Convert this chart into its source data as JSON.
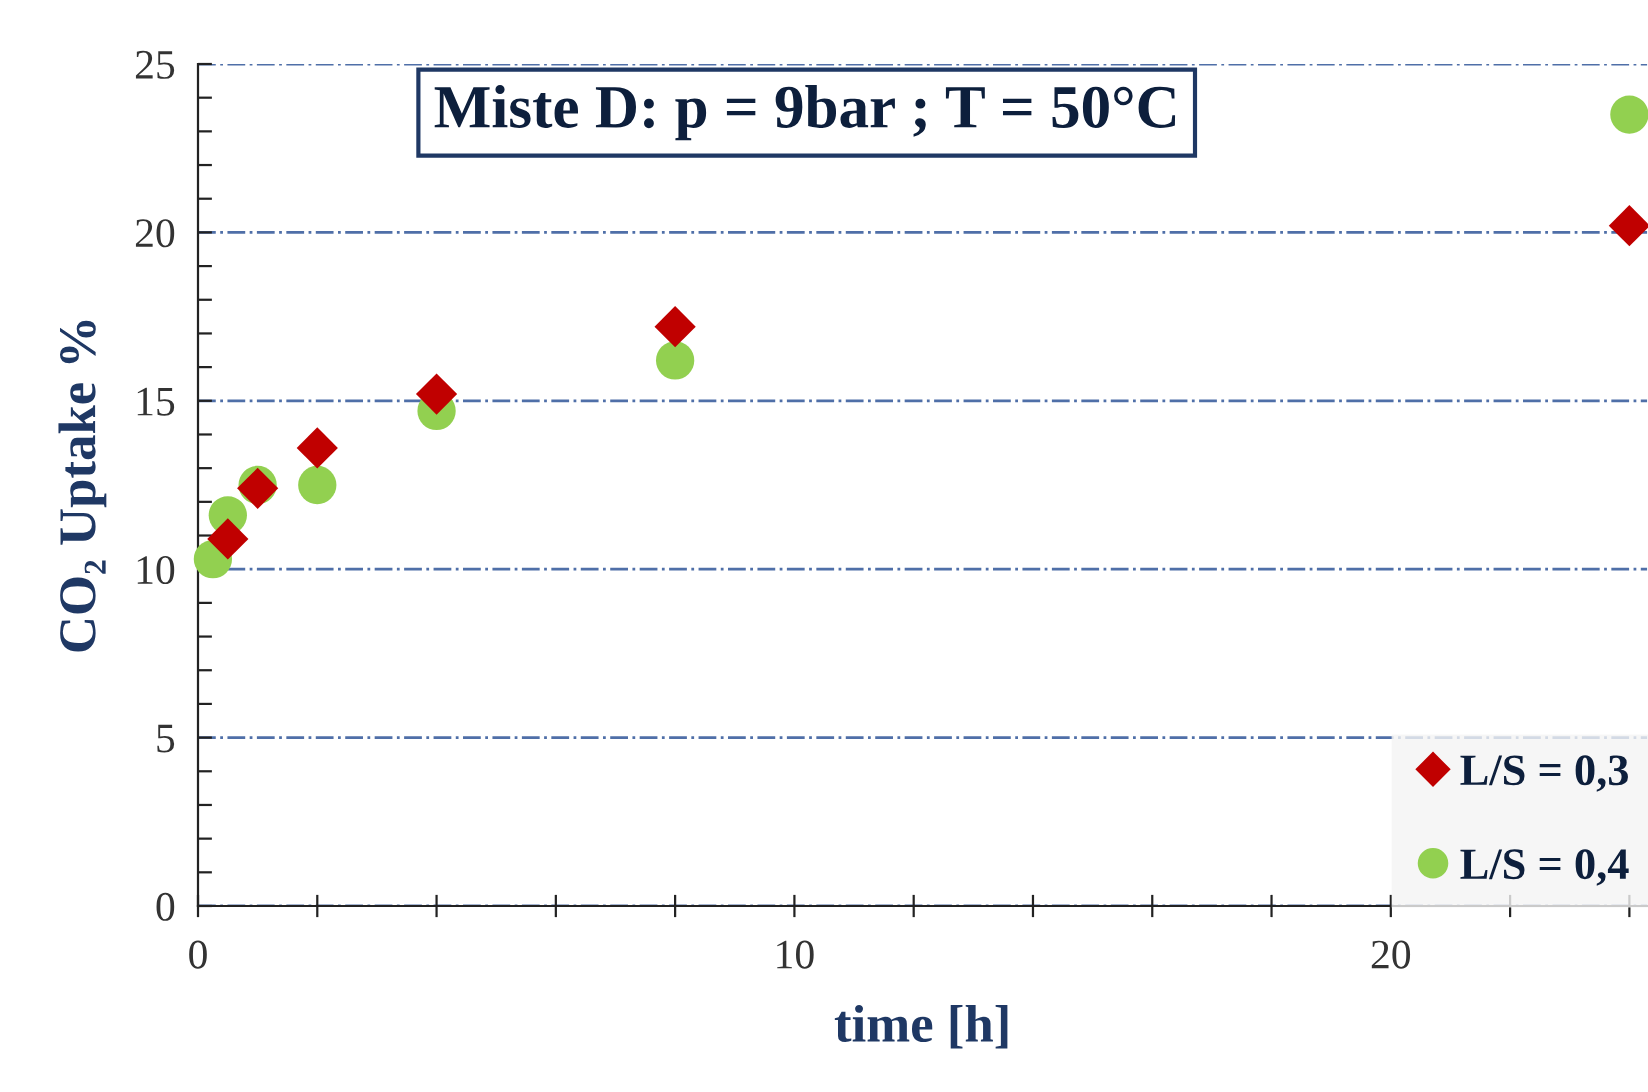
{
  "chart_data": {
    "type": "scatter",
    "title": "Miste D: p = 9bar ; T = 50°C",
    "xlabel": "time [h]",
    "ylabel": "CO₂ Uptake %",
    "series": [
      {
        "name": "L/S = 0,3",
        "color": "#c00000",
        "marker": "diamond",
        "x": [
          0.5,
          1,
          2,
          4,
          8,
          24
        ],
        "values": [
          10.9,
          12.4,
          13.6,
          15.2,
          17.2,
          20.2
        ]
      },
      {
        "name": "L/S = 0,4",
        "color": "#92d050",
        "marker": "circle",
        "x": [
          0.25,
          0.5,
          1,
          2,
          4,
          8,
          24
        ],
        "values": [
          10.3,
          11.6,
          12.5,
          12.5,
          14.7,
          16.2,
          23.5
        ]
      }
    ],
    "xlim": [
      0,
      24.3
    ],
    "ylim": [
      0,
      25
    ],
    "xticks": [
      0,
      {
        "value": 2,
        "label": null
      },
      {
        "value": 4,
        "label": null
      },
      {
        "value": 6,
        "label": null
      },
      {
        "value": 8,
        "label": null
      },
      10,
      {
        "value": 12,
        "label": null
      },
      {
        "value": 14,
        "label": null
      },
      {
        "value": 16,
        "label": null
      },
      {
        "value": 18,
        "label": null
      },
      20,
      {
        "value": 22,
        "label": null
      },
      {
        "value": 24,
        "label": null
      }
    ],
    "yticks": [
      0,
      {
        "value": 1,
        "label": null
      },
      {
        "value": 2,
        "label": null
      },
      {
        "value": 3,
        "label": null
      },
      {
        "value": 4,
        "label": null
      },
      5,
      {
        "value": 6,
        "label": null
      },
      {
        "value": 7,
        "label": null
      },
      {
        "value": 8,
        "label": null
      },
      {
        "value": 9,
        "label": null
      },
      10,
      {
        "value": 11,
        "label": null
      },
      {
        "value": 12,
        "label": null
      },
      {
        "value": 13,
        "label": null
      },
      {
        "value": 14,
        "label": null
      },
      15,
      {
        "value": 16,
        "label": null
      },
      {
        "value": 17,
        "label": null
      },
      {
        "value": 18,
        "label": null
      },
      {
        "value": 19,
        "label": null
      },
      20,
      {
        "value": 21,
        "label": null
      },
      {
        "value": 22,
        "label": null
      },
      {
        "value": 23,
        "label": null
      },
      {
        "value": 24,
        "label": null
      },
      25
    ],
    "grid": "y",
    "legend": "bottom right"
  }
}
